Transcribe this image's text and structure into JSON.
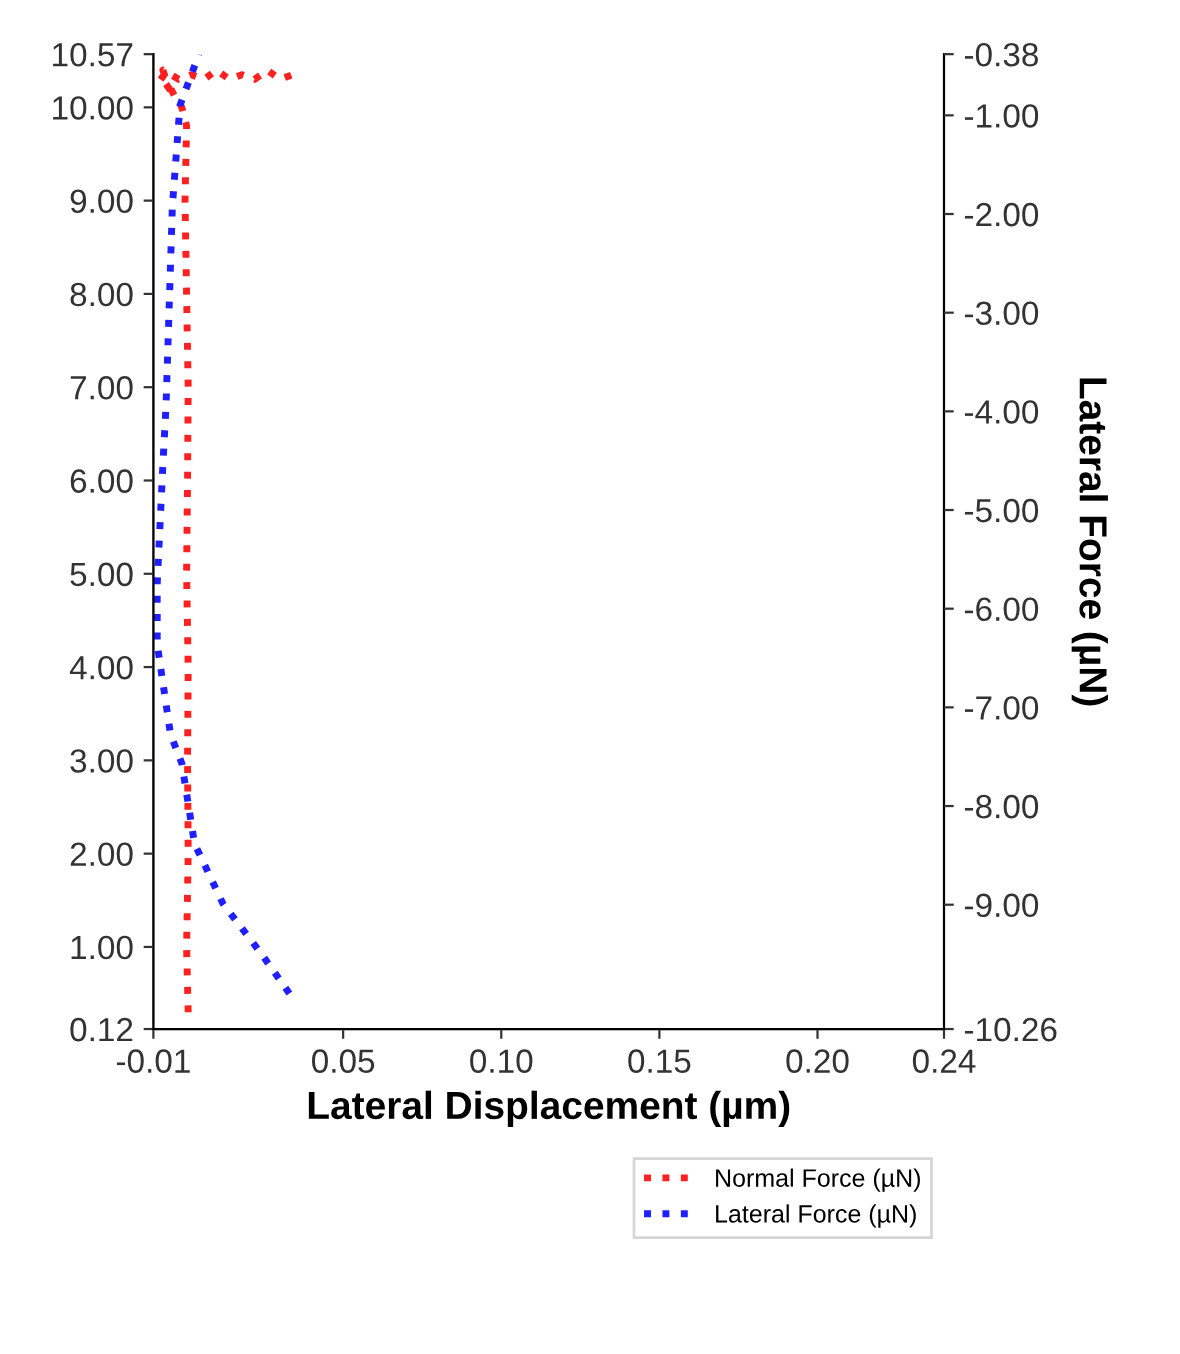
{
  "chart_data": {
    "type": "line",
    "xlabel": "Lateral Displacement (µm)",
    "y2label": "Lateral Force (µN)",
    "xlim": [
      -0.01,
      0.24
    ],
    "xticks": [
      -0.01,
      0.05,
      {
        "value": 0.1,
        "label": "0.10"
      },
      0.15,
      {
        "value": 0.2,
        "label": "0.20"
      },
      0.24
    ],
    "ylim": [
      0.12,
      10.57
    ],
    "yticks": [
      0.12,
      {
        "value": 1,
        "label": "1.00"
      },
      {
        "value": 2,
        "label": "2.00"
      },
      {
        "value": 3,
        "label": "3.00"
      },
      {
        "value": 4,
        "label": "4.00"
      },
      {
        "value": 5,
        "label": "5.00"
      },
      {
        "value": 6,
        "label": "6.00"
      },
      {
        "value": 7,
        "label": "7.00"
      },
      {
        "value": 8,
        "label": "8.00"
      },
      {
        "value": 9,
        "label": "9.00"
      },
      {
        "value": 10,
        "label": "10.00"
      },
      10.57
    ],
    "y2lim": [
      -10.26,
      -0.38
    ],
    "y2ticks": [
      -10.26,
      {
        "value": -9,
        "label": "-9.00"
      },
      {
        "value": -8,
        "label": "-8.00"
      },
      {
        "value": -7,
        "label": "-7.00"
      },
      {
        "value": -6,
        "label": "-6.00"
      },
      {
        "value": -5,
        "label": "-5.00"
      },
      {
        "value": -4,
        "label": "-4.00"
      },
      {
        "value": -3,
        "label": "-3.00"
      },
      {
        "value": -2,
        "label": "-2.00"
      },
      {
        "value": -1,
        "label": "-1.00"
      },
      -0.38
    ],
    "line_style": "dotted",
    "legend": "bottom right",
    "grid": false,
    "series": [
      {
        "name": "Normal Force (µN)",
        "color": "#ff2020",
        "x": [
          0.001,
          0.0005,
          0.001,
          0.0008,
          0.001,
          0.0005,
          0.0008,
          0.001,
          0.0005,
          0.0,
          0.0005,
          -0.001,
          -0.003,
          -0.006,
          -0.008,
          -0.005,
          -0.007,
          -0.002,
          0.002,
          0.006,
          0.01,
          0.014,
          0.018,
          0.022,
          0.026,
          0.03,
          0.034,
          0.036
        ],
        "values": [
          0.3,
          1.0,
          2.0,
          3.0,
          4.0,
          5.0,
          6.0,
          7.0,
          8.0,
          9.0,
          9.8,
          10.0,
          10.1,
          10.3,
          10.35,
          10.2,
          10.4,
          10.3,
          10.35,
          10.3,
          10.4,
          10.3,
          10.35,
          10.3,
          10.4,
          10.3,
          10.35,
          10.3
        ]
      },
      {
        "name": "Lateral Force (µN)",
        "color": "#2020ff",
        "axis": "y2",
        "x": [
          0.033,
          0.024,
          0.012,
          0.003,
          -0.001,
          -0.0046,
          -0.0088,
          -0.0088,
          -0.007,
          -0.006,
          -0.005,
          -0.004,
          -0.0016,
          0.0044
        ],
        "values": [
          -9.9,
          -9.49,
          -8.99,
          -8.38,
          -7.57,
          -7.27,
          -6.36,
          -5.75,
          -4.54,
          -3.94,
          -2.93,
          -1.92,
          -0.9,
          -0.38
        ]
      }
    ]
  }
}
